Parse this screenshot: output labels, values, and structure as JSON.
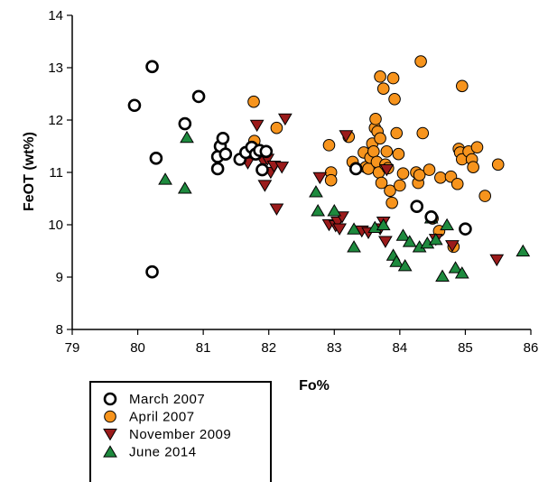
{
  "chart_data": {
    "type": "scatter",
    "title": "",
    "xlabel": "Fo%",
    "ylabel": "FeOT (wt%)",
    "xlim": [
      79,
      86
    ],
    "ylim": [
      8,
      14
    ],
    "xticks": [
      "79",
      "80",
      "81",
      "82",
      "83",
      "84",
      "85",
      "86"
    ],
    "yticks": [
      "8",
      "9",
      "10",
      "11",
      "12",
      "13",
      "14"
    ],
    "grid": false,
    "legend_position": "bottom-left, outside plot",
    "series": [
      {
        "name": "March 2007",
        "marker": "open-circle",
        "color": "#000000",
        "points": [
          [
            79.95,
            12.28
          ],
          [
            80.22,
            13.02
          ],
          [
            80.22,
            9.1
          ],
          [
            80.28,
            11.27
          ],
          [
            80.72,
            11.93
          ],
          [
            80.93,
            12.45
          ],
          [
            81.22,
            11.07
          ],
          [
            81.22,
            11.3
          ],
          [
            81.26,
            11.5
          ],
          [
            81.3,
            11.65
          ],
          [
            81.34,
            11.35
          ],
          [
            81.56,
            11.25
          ],
          [
            81.65,
            11.38
          ],
          [
            81.74,
            11.48
          ],
          [
            81.8,
            11.35
          ],
          [
            81.86,
            11.42
          ],
          [
            81.9,
            11.05
          ],
          [
            81.96,
            11.4
          ],
          [
            83.33,
            11.07
          ],
          [
            84.26,
            10.35
          ],
          [
            84.48,
            10.15
          ],
          [
            85.0,
            9.92
          ]
        ]
      },
      {
        "name": "April 2007",
        "marker": "filled-circle",
        "color": "#f7941d",
        "points": [
          [
            81.77,
            12.35
          ],
          [
            81.78,
            11.6
          ],
          [
            82.12,
            11.85
          ],
          [
            82.92,
            11.52
          ],
          [
            82.95,
            11.0
          ],
          [
            82.95,
            10.85
          ],
          [
            83.22,
            11.68
          ],
          [
            83.28,
            11.2
          ],
          [
            83.33,
            11.08
          ],
          [
            83.45,
            11.38
          ],
          [
            83.48,
            11.1
          ],
          [
            83.52,
            11.07
          ],
          [
            83.55,
            11.28
          ],
          [
            83.58,
            11.55
          ],
          [
            83.6,
            11.4
          ],
          [
            83.62,
            11.85
          ],
          [
            83.63,
            12.02
          ],
          [
            83.65,
            11.2
          ],
          [
            83.66,
            11.78
          ],
          [
            83.68,
            11.0
          ],
          [
            83.7,
            11.65
          ],
          [
            83.7,
            12.83
          ],
          [
            83.72,
            10.8
          ],
          [
            83.75,
            12.6
          ],
          [
            83.78,
            11.15
          ],
          [
            83.8,
            11.4
          ],
          [
            83.82,
            11.08
          ],
          [
            83.85,
            10.65
          ],
          [
            83.88,
            10.42
          ],
          [
            83.9,
            12.8
          ],
          [
            83.92,
            12.4
          ],
          [
            83.95,
            11.75
          ],
          [
            83.98,
            11.35
          ],
          [
            84.0,
            10.75
          ],
          [
            84.05,
            10.98
          ],
          [
            84.25,
            11.0
          ],
          [
            84.28,
            10.8
          ],
          [
            84.3,
            10.95
          ],
          [
            84.32,
            13.12
          ],
          [
            84.35,
            11.75
          ],
          [
            84.45,
            11.05
          ],
          [
            84.5,
            10.12
          ],
          [
            84.6,
            9.88
          ],
          [
            84.62,
            10.9
          ],
          [
            84.78,
            10.92
          ],
          [
            84.82,
            9.58
          ],
          [
            84.88,
            10.78
          ],
          [
            84.9,
            11.45
          ],
          [
            84.92,
            11.38
          ],
          [
            84.95,
            11.25
          ],
          [
            84.95,
            12.65
          ],
          [
            85.05,
            11.4
          ],
          [
            85.1,
            11.25
          ],
          [
            85.12,
            11.1
          ],
          [
            85.18,
            11.48
          ],
          [
            85.3,
            10.55
          ],
          [
            85.5,
            11.15
          ]
        ]
      },
      {
        "name": "November 2009",
        "marker": "filled-triangle-down",
        "color": "#9b1b1b",
        "points": [
          [
            81.68,
            11.18
          ],
          [
            81.82,
            11.9
          ],
          [
            81.9,
            11.38
          ],
          [
            81.92,
            11.2
          ],
          [
            81.94,
            10.75
          ],
          [
            81.98,
            11.25
          ],
          [
            82.03,
            11.0
          ],
          [
            82.08,
            11.12
          ],
          [
            82.12,
            10.3
          ],
          [
            82.2,
            11.1
          ],
          [
            82.25,
            12.02
          ],
          [
            82.78,
            10.9
          ],
          [
            82.92,
            10.0
          ],
          [
            83.02,
            9.98
          ],
          [
            83.05,
            10.05
          ],
          [
            83.08,
            9.92
          ],
          [
            83.12,
            10.15
          ],
          [
            83.18,
            11.7
          ],
          [
            83.42,
            9.88
          ],
          [
            83.52,
            9.85
          ],
          [
            83.7,
            9.92
          ],
          [
            83.75,
            10.05
          ],
          [
            83.78,
            9.68
          ],
          [
            83.8,
            11.05
          ],
          [
            84.55,
            9.72
          ],
          [
            84.8,
            9.6
          ],
          [
            85.48,
            9.33
          ]
        ]
      },
      {
        "name": "June 2014",
        "marker": "filled-triangle-up",
        "color": "#1e8a3e",
        "points": [
          [
            80.42,
            10.87
          ],
          [
            80.72,
            10.7
          ],
          [
            80.75,
            11.67
          ],
          [
            82.72,
            10.63
          ],
          [
            82.75,
            10.27
          ],
          [
            83.0,
            10.27
          ],
          [
            83.3,
            9.92
          ],
          [
            83.3,
            9.58
          ],
          [
            83.62,
            9.95
          ],
          [
            83.75,
            10.0
          ],
          [
            83.9,
            9.42
          ],
          [
            83.95,
            9.3
          ],
          [
            84.05,
            9.8
          ],
          [
            84.08,
            9.22
          ],
          [
            84.15,
            9.68
          ],
          [
            84.3,
            9.58
          ],
          [
            84.42,
            9.65
          ],
          [
            84.48,
            10.13
          ],
          [
            84.55,
            9.72
          ],
          [
            84.65,
            9.02
          ],
          [
            84.72,
            10.0
          ],
          [
            84.85,
            9.18
          ],
          [
            84.95,
            9.08
          ],
          [
            85.88,
            9.5
          ]
        ]
      }
    ]
  }
}
